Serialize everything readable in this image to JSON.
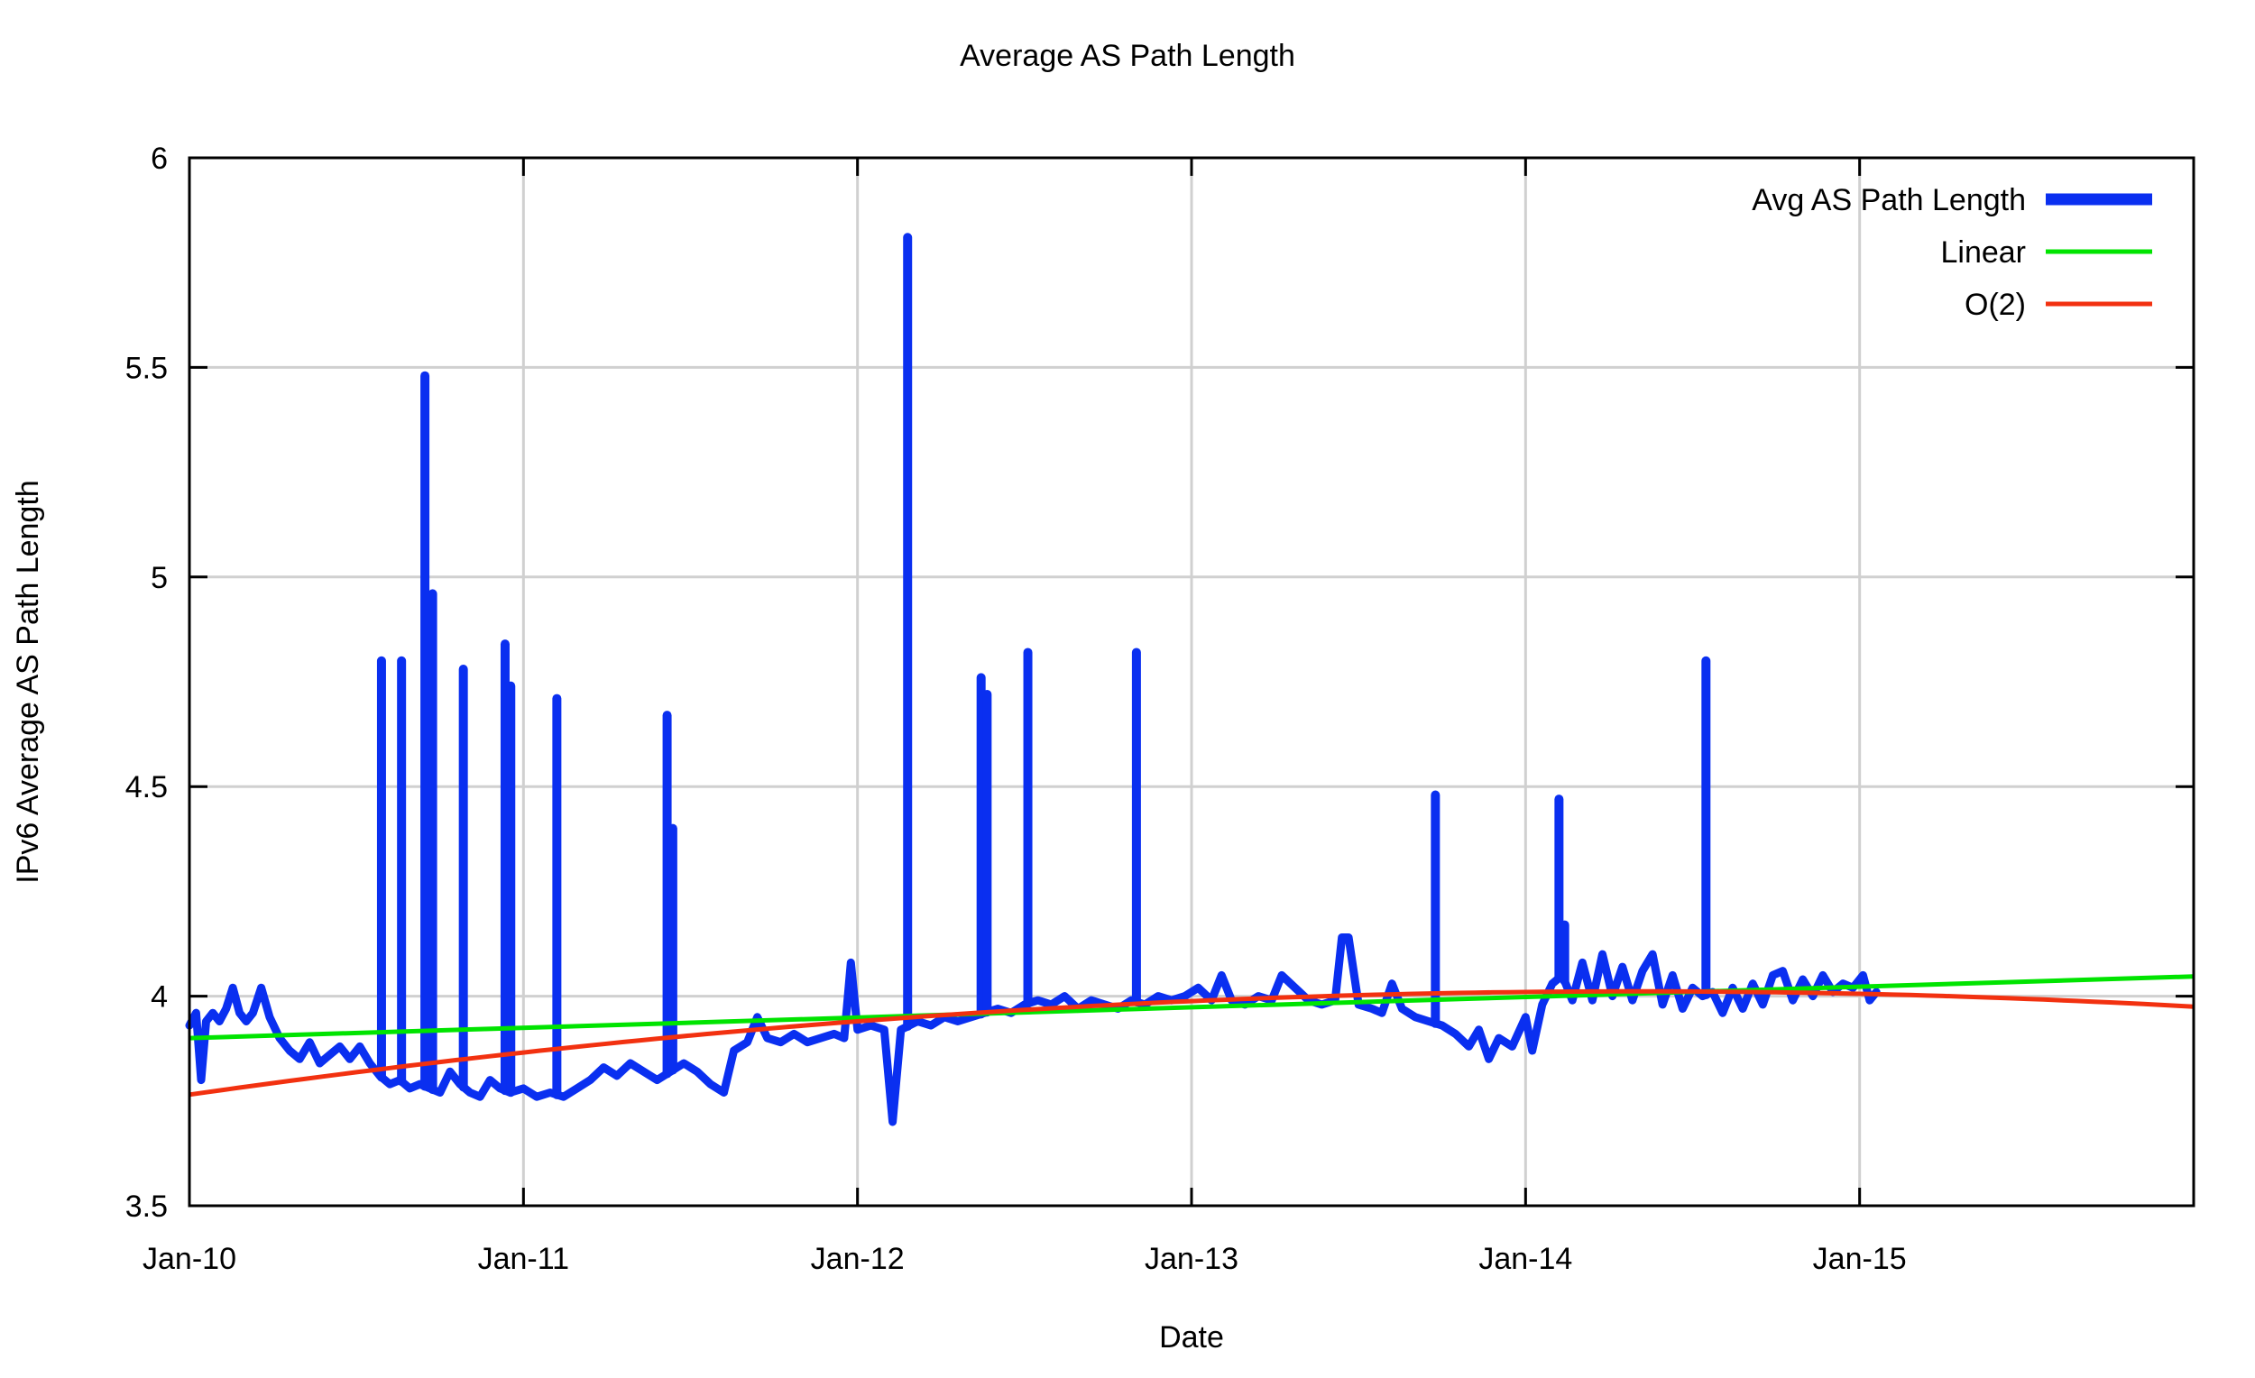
{
  "title": "Average AS Path Length",
  "xlabel": "Date",
  "ylabel": "IPv6 Average AS Path Length",
  "colors": {
    "background": "#ffffff",
    "border": "#000000",
    "grid": "#d0d0d0",
    "series_blue": "#0a2ff0",
    "series_green": "#00e400",
    "series_red": "#f23110",
    "text": "#000000"
  },
  "legend": [
    {
      "label": "Avg AS Path Length",
      "color": "#0a2ff0",
      "line_width": 13
    },
    {
      "label": "Linear",
      "color": "#00e400",
      "line_width": 5
    },
    {
      "label": "O(2)",
      "color": "#f23110",
      "line_width": 5
    }
  ],
  "chart_data": {
    "type": "line",
    "title": "Average AS Path Length",
    "xlabel": "Date",
    "ylabel": "IPv6 Average AS Path Length",
    "grid": true,
    "legend_position": "top-right",
    "x_axis": {
      "min": 2010.0,
      "max": 2016.0,
      "ticks": [
        {
          "t": 2010.0,
          "label": "Jan-10"
        },
        {
          "t": 2011.0,
          "label": "Jan-11"
        },
        {
          "t": 2012.0,
          "label": "Jan-12"
        },
        {
          "t": 2013.0,
          "label": "Jan-13"
        },
        {
          "t": 2014.0,
          "label": "Jan-14"
        },
        {
          "t": 2015.0,
          "label": "Jan-15"
        }
      ]
    },
    "y_axis": {
      "min": 3.5,
      "max": 6.0,
      "ticks": [
        {
          "v": 3.5,
          "label": "3.5"
        },
        {
          "v": 4.0,
          "label": "4"
        },
        {
          "v": 4.5,
          "label": "4.5"
        },
        {
          "v": 5.0,
          "label": "5"
        },
        {
          "v": 5.5,
          "label": "5.5"
        },
        {
          "v": 6.0,
          "label": "6"
        }
      ]
    },
    "series": [
      {
        "name": "Avg AS Path Length",
        "kind": "data",
        "color": "#0a2ff0",
        "line_width": 9,
        "baseline": [
          [
            2010.0,
            3.93
          ],
          [
            2010.02,
            3.96
          ],
          [
            2010.035,
            3.8
          ],
          [
            2010.05,
            3.94
          ],
          [
            2010.07,
            3.96
          ],
          [
            2010.09,
            3.94
          ],
          [
            2010.11,
            3.97
          ],
          [
            2010.13,
            4.02
          ],
          [
            2010.15,
            3.96
          ],
          [
            2010.17,
            3.94
          ],
          [
            2010.19,
            3.96
          ],
          [
            2010.215,
            4.02
          ],
          [
            2010.24,
            3.95
          ],
          [
            2010.27,
            3.9
          ],
          [
            2010.3,
            3.87
          ],
          [
            2010.33,
            3.85
          ],
          [
            2010.36,
            3.89
          ],
          [
            2010.39,
            3.84
          ],
          [
            2010.42,
            3.86
          ],
          [
            2010.45,
            3.88
          ],
          [
            2010.48,
            3.85
          ],
          [
            2010.51,
            3.88
          ],
          [
            2010.54,
            3.84
          ],
          [
            2010.57,
            3.81
          ],
          [
            2010.6,
            3.79
          ],
          [
            2010.63,
            3.8
          ],
          [
            2010.66,
            3.78
          ],
          [
            2010.69,
            3.79
          ],
          [
            2010.72,
            3.78
          ],
          [
            2010.75,
            3.77
          ],
          [
            2010.78,
            3.82
          ],
          [
            2010.81,
            3.79
          ],
          [
            2010.84,
            3.77
          ],
          [
            2010.87,
            3.76
          ],
          [
            2010.9,
            3.8
          ],
          [
            2010.93,
            3.78
          ],
          [
            2010.96,
            3.77
          ],
          [
            2011.0,
            3.78
          ],
          [
            2011.04,
            3.76
          ],
          [
            2011.08,
            3.77
          ],
          [
            2011.12,
            3.76
          ],
          [
            2011.16,
            3.78
          ],
          [
            2011.2,
            3.8
          ],
          [
            2011.24,
            3.83
          ],
          [
            2011.28,
            3.81
          ],
          [
            2011.32,
            3.84
          ],
          [
            2011.36,
            3.82
          ],
          [
            2011.4,
            3.8
          ],
          [
            2011.44,
            3.82
          ],
          [
            2011.48,
            3.84
          ],
          [
            2011.52,
            3.82
          ],
          [
            2011.56,
            3.79
          ],
          [
            2011.6,
            3.77
          ],
          [
            2011.63,
            3.87
          ],
          [
            2011.67,
            3.89
          ],
          [
            2011.7,
            3.95
          ],
          [
            2011.73,
            3.9
          ],
          [
            2011.77,
            3.89
          ],
          [
            2011.81,
            3.91
          ],
          [
            2011.85,
            3.89
          ],
          [
            2011.89,
            3.9
          ],
          [
            2011.93,
            3.91
          ],
          [
            2011.96,
            3.9
          ],
          [
            2011.98,
            4.08
          ],
          [
            2012.0,
            3.92
          ],
          [
            2012.04,
            3.93
          ],
          [
            2012.08,
            3.92
          ],
          [
            2012.105,
            3.7
          ],
          [
            2012.13,
            3.92
          ],
          [
            2012.18,
            3.94
          ],
          [
            2012.22,
            3.93
          ],
          [
            2012.26,
            3.95
          ],
          [
            2012.3,
            3.94
          ],
          [
            2012.34,
            3.95
          ],
          [
            2012.38,
            3.96
          ],
          [
            2012.42,
            3.97
          ],
          [
            2012.46,
            3.96
          ],
          [
            2012.5,
            3.98
          ],
          [
            2012.54,
            3.99
          ],
          [
            2012.58,
            3.98
          ],
          [
            2012.62,
            4.0
          ],
          [
            2012.66,
            3.97
          ],
          [
            2012.7,
            3.99
          ],
          [
            2012.74,
            3.98
          ],
          [
            2012.78,
            3.97
          ],
          [
            2012.82,
            3.99
          ],
          [
            2012.86,
            3.98
          ],
          [
            2012.9,
            4.0
          ],
          [
            2012.94,
            3.99
          ],
          [
            2012.98,
            4.0
          ],
          [
            2013.02,
            4.02
          ],
          [
            2013.06,
            3.99
          ],
          [
            2013.09,
            4.05
          ],
          [
            2013.12,
            3.99
          ],
          [
            2013.16,
            3.98
          ],
          [
            2013.2,
            4.0
          ],
          [
            2013.24,
            3.99
          ],
          [
            2013.27,
            4.05
          ],
          [
            2013.31,
            4.02
          ],
          [
            2013.35,
            3.99
          ],
          [
            2013.39,
            3.98
          ],
          [
            2013.43,
            3.99
          ],
          [
            2013.45,
            4.14
          ],
          [
            2013.47,
            4.14
          ],
          [
            2013.5,
            3.98
          ],
          [
            2013.54,
            3.97
          ],
          [
            2013.57,
            3.96
          ],
          [
            2013.6,
            4.03
          ],
          [
            2013.63,
            3.97
          ],
          [
            2013.67,
            3.95
          ],
          [
            2013.71,
            3.94
          ],
          [
            2013.75,
            3.93
          ],
          [
            2013.79,
            3.91
          ],
          [
            2013.83,
            3.88
          ],
          [
            2013.86,
            3.92
          ],
          [
            2013.89,
            3.85
          ],
          [
            2013.92,
            3.9
          ],
          [
            2013.96,
            3.88
          ],
          [
            2014.0,
            3.95
          ],
          [
            2014.02,
            3.87
          ],
          [
            2014.05,
            3.98
          ],
          [
            2014.08,
            4.03
          ],
          [
            2014.11,
            4.05
          ],
          [
            2014.14,
            3.99
          ],
          [
            2014.17,
            4.08
          ],
          [
            2014.2,
            3.99
          ],
          [
            2014.23,
            4.1
          ],
          [
            2014.26,
            4.0
          ],
          [
            2014.29,
            4.07
          ],
          [
            2014.32,
            3.99
          ],
          [
            2014.35,
            4.06
          ],
          [
            2014.38,
            4.1
          ],
          [
            2014.41,
            3.98
          ],
          [
            2014.44,
            4.05
          ],
          [
            2014.47,
            3.97
          ],
          [
            2014.5,
            4.02
          ],
          [
            2014.53,
            4.0
          ],
          [
            2014.56,
            4.01
          ],
          [
            2014.59,
            3.96
          ],
          [
            2014.62,
            4.02
          ],
          [
            2014.65,
            3.97
          ],
          [
            2014.68,
            4.03
          ],
          [
            2014.71,
            3.98
          ],
          [
            2014.74,
            4.05
          ],
          [
            2014.77,
            4.06
          ],
          [
            2014.8,
            3.99
          ],
          [
            2014.83,
            4.04
          ],
          [
            2014.86,
            4.0
          ],
          [
            2014.89,
            4.05
          ],
          [
            2014.92,
            4.01
          ],
          [
            2014.95,
            4.03
          ],
          [
            2014.98,
            4.02
          ],
          [
            2015.01,
            4.05
          ],
          [
            2015.03,
            3.99
          ],
          [
            2015.05,
            4.01
          ]
        ],
        "spikes": [
          [
            2010.575,
            4.8
          ],
          [
            2010.635,
            4.8
          ],
          [
            2010.705,
            5.48
          ],
          [
            2010.728,
            4.96
          ],
          [
            2010.82,
            4.78
          ],
          [
            2010.945,
            4.84
          ],
          [
            2010.962,
            4.74
          ],
          [
            2011.1,
            4.71
          ],
          [
            2011.43,
            4.67
          ],
          [
            2011.447,
            4.4
          ],
          [
            2012.15,
            5.81
          ],
          [
            2012.37,
            4.76
          ],
          [
            2012.388,
            4.72
          ],
          [
            2012.51,
            4.82
          ],
          [
            2012.835,
            4.82
          ],
          [
            2013.73,
            4.48
          ],
          [
            2014.1,
            4.47
          ],
          [
            2014.117,
            4.17
          ],
          [
            2014.54,
            4.8
          ]
        ]
      },
      {
        "name": "Linear",
        "kind": "linear",
        "color": "#00e400",
        "line_width": 5,
        "intercept_2010": 3.9,
        "slope_per_year": 0.0245,
        "domain": [
          2010.0,
          2016.0
        ]
      },
      {
        "name": "O(2)",
        "kind": "quadratic",
        "color": "#f23110",
        "line_width": 5,
        "a": 3.765,
        "b": 0.11375,
        "c": -0.013125,
        "domain": [
          2010.0,
          2016.0
        ]
      }
    ]
  }
}
